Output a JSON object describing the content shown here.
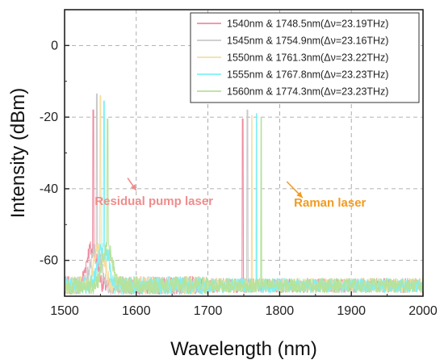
{
  "chart_data": {
    "type": "line",
    "title": "",
    "xlabel": "Wavelength (nm)",
    "ylabel": "Intensity (dBm)",
    "xlim": [
      1500,
      2000
    ],
    "ylim": [
      -70,
      10
    ],
    "xticks": [
      1500,
      1600,
      1700,
      1800,
      1900,
      2000
    ],
    "yticks": [
      -60,
      -40,
      -20,
      0
    ],
    "grid": true,
    "legend_position": "top-right",
    "noise_floor_dbm": -67,
    "series": [
      {
        "name": "1540nm & 1748.5nm(Δν=23.19THz)",
        "color": "#f08ca0",
        "pump_nm": 1540,
        "pump_peak_dbm": -18,
        "raman_nm": 1748.5,
        "raman_peak_dbm": -20.5
      },
      {
        "name": "1545nm & 1754.9nm(Δν=23.16THz)",
        "color": "#c9c9c9",
        "pump_nm": 1545,
        "pump_peak_dbm": -13.5,
        "raman_nm": 1754.9,
        "raman_peak_dbm": -18
      },
      {
        "name": "1550nm & 1761.3nm(Δν=23.22THz)",
        "color": "#f5dea0",
        "pump_nm": 1550,
        "pump_peak_dbm": -14,
        "raman_nm": 1761.3,
        "raman_peak_dbm": -19.5
      },
      {
        "name": "1555nm & 1767.8nm(Δν=23.23THz)",
        "color": "#7ff0f6",
        "pump_nm": 1555,
        "pump_peak_dbm": -15.5,
        "raman_nm": 1767.8,
        "raman_peak_dbm": -19
      },
      {
        "name": "1560nm & 1774.3nm(Δν=23.23THz)",
        "color": "#b6e29a",
        "pump_nm": 1560,
        "pump_peak_dbm": -20.5,
        "raman_nm": 1774.3,
        "raman_peak_dbm": -20
      }
    ],
    "annotations": [
      {
        "text": "Residual pump laser",
        "color": "#f08c8c",
        "x": 1542,
        "y": -44.5,
        "arrow_from": [
          1588,
          -37
        ],
        "arrow_to": [
          1600,
          -40.5
        ]
      },
      {
        "text": "Raman laser",
        "color": "#f39a1f",
        "x": 1820,
        "y": -45,
        "arrow_from": [
          1810,
          -38
        ],
        "arrow_to": [
          1832,
          -42.5
        ]
      }
    ]
  }
}
